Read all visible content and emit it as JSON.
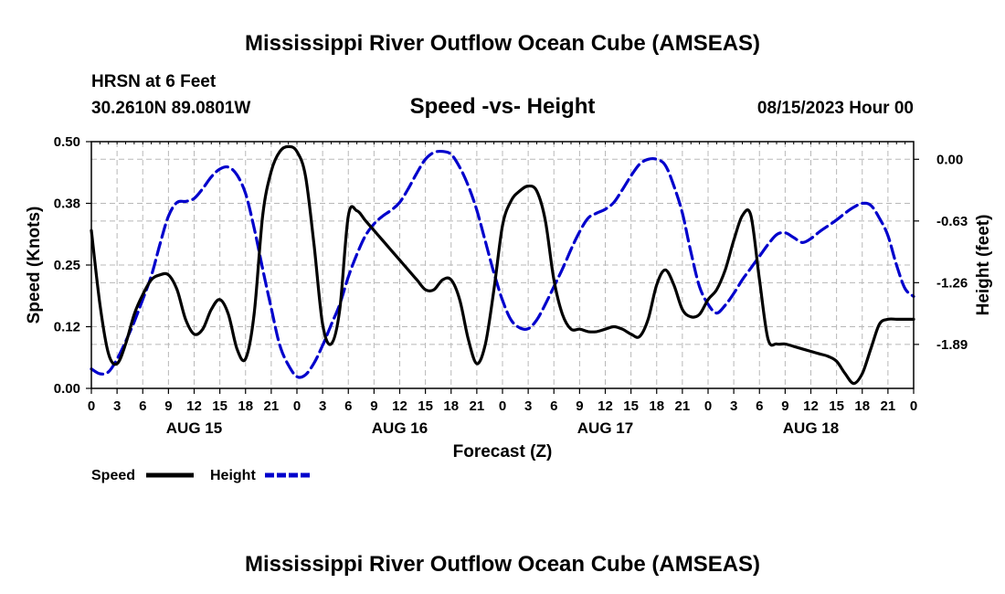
{
  "header": {
    "title": "Mississippi River Outflow Ocean Cube (AMSEAS)",
    "station": "HRSN at 6 Feet",
    "location": "30.2610N  89.0801W",
    "subtitle": "Speed -vs- Height",
    "timestamp": "08/15/2023 Hour 00"
  },
  "footer": {
    "title": "Mississippi River Outflow Ocean Cube (AMSEAS)"
  },
  "legend": [
    {
      "label": "Speed",
      "color": "#000000",
      "dash": "solid"
    },
    {
      "label": "Height",
      "color": "#0000cc",
      "dash": "dashed"
    }
  ],
  "chart_data": {
    "type": "line",
    "title": "Speed -vs- Height",
    "xlabel": "Forecast (Z)",
    "ylabel": "Speed (Knots)",
    "y2label": "Height (feet)",
    "xlim": [
      0,
      96
    ],
    "ylim": [
      0,
      0.5
    ],
    "y2lim": [
      -2.339,
      0.18
    ],
    "x_ticks": [
      0,
      3,
      6,
      9,
      12,
      15,
      18,
      21,
      24,
      27,
      30,
      33,
      36,
      39,
      42,
      45,
      48,
      51,
      54,
      57,
      60,
      63,
      66,
      69,
      72,
      75,
      78,
      81,
      84,
      87,
      90,
      93,
      96
    ],
    "x_tick_labels": [
      "0",
      "3",
      "6",
      "9",
      "12",
      "15",
      "18",
      "21",
      "0",
      "3",
      "6",
      "9",
      "12",
      "15",
      "18",
      "21",
      "0",
      "3",
      "6",
      "9",
      "12",
      "15",
      "18",
      "21",
      "0",
      "3",
      "6",
      "9",
      "12",
      "15",
      "18",
      "21",
      "0"
    ],
    "day_labels": [
      {
        "x": 12,
        "label": "AUG 15"
      },
      {
        "x": 36,
        "label": "AUG 16"
      },
      {
        "x": 60,
        "label": "AUG 17"
      },
      {
        "x": 84,
        "label": "AUG 18"
      }
    ],
    "y_ticks": [
      0.0,
      0.125,
      0.25,
      0.375,
      0.5
    ],
    "y_tick_labels": [
      "0.00",
      "0.12",
      "0.25",
      "0.38",
      "0.50"
    ],
    "y2_ticks": [
      0.0,
      -0.63,
      -1.26,
      -1.89
    ],
    "y2_tick_labels": [
      "0.00",
      "-0.63",
      "-1.26",
      "-1.89"
    ],
    "series": [
      {
        "name": "Speed",
        "axis": "left",
        "color": "#000000",
        "x": [
          0,
          1,
          2,
          3,
          4,
          5,
          6,
          7,
          8,
          9,
          10,
          11,
          12,
          13,
          14,
          15,
          16,
          17,
          18,
          19,
          20,
          21,
          22,
          23,
          24,
          25,
          26,
          27,
          28,
          29,
          30,
          31,
          32,
          33,
          34,
          35,
          36,
          37,
          38,
          39,
          40,
          41,
          42,
          43,
          44,
          45,
          46,
          47,
          48,
          49,
          50,
          51,
          52,
          53,
          54,
          55,
          56,
          57,
          58,
          59,
          60,
          61,
          62,
          63,
          64,
          65,
          66,
          67,
          68,
          69,
          70,
          71,
          72,
          73,
          74,
          75,
          76,
          77,
          78,
          79,
          80,
          81,
          82,
          83,
          84,
          85,
          86,
          87,
          88,
          89,
          90,
          91,
          92,
          93,
          94,
          95,
          96
        ],
        "values": [
          0.32,
          0.17,
          0.07,
          0.05,
          0.09,
          0.15,
          0.19,
          0.22,
          0.23,
          0.23,
          0.2,
          0.14,
          0.11,
          0.12,
          0.16,
          0.18,
          0.15,
          0.08,
          0.06,
          0.15,
          0.35,
          0.44,
          0.48,
          0.49,
          0.48,
          0.43,
          0.29,
          0.13,
          0.09,
          0.16,
          0.35,
          0.36,
          0.34,
          0.32,
          0.3,
          0.28,
          0.26,
          0.24,
          0.22,
          0.2,
          0.2,
          0.22,
          0.22,
          0.18,
          0.1,
          0.05,
          0.09,
          0.2,
          0.33,
          0.38,
          0.4,
          0.41,
          0.4,
          0.34,
          0.22,
          0.15,
          0.12,
          0.12,
          0.115,
          0.115,
          0.12,
          0.125,
          0.12,
          0.11,
          0.105,
          0.14,
          0.21,
          0.24,
          0.21,
          0.16,
          0.145,
          0.15,
          0.18,
          0.2,
          0.24,
          0.3,
          0.35,
          0.35,
          0.22,
          0.1,
          0.09,
          0.09,
          0.085,
          0.08,
          0.075,
          0.07,
          0.065,
          0.055,
          0.03,
          0.01,
          0.03,
          0.08,
          0.13,
          0.14,
          0.14,
          0.14,
          0.14
        ]
      },
      {
        "name": "Height",
        "axis": "right",
        "color": "#0000cc",
        "x": [
          0,
          1,
          2,
          3,
          4,
          5,
          6,
          7,
          8,
          9,
          10,
          11,
          12,
          13,
          14,
          15,
          16,
          17,
          18,
          19,
          20,
          21,
          22,
          23,
          24,
          25,
          26,
          27,
          28,
          29,
          30,
          31,
          32,
          33,
          34,
          35,
          36,
          37,
          38,
          39,
          40,
          41,
          42,
          43,
          44,
          45,
          46,
          47,
          48,
          49,
          50,
          51,
          52,
          53,
          54,
          55,
          56,
          57,
          58,
          59,
          60,
          61,
          62,
          63,
          64,
          65,
          66,
          67,
          68,
          69,
          70,
          71,
          72,
          73,
          74,
          75,
          76,
          77,
          78,
          79,
          80,
          81,
          82,
          83,
          84,
          85,
          86,
          87,
          88,
          89,
          90,
          91,
          92,
          93,
          94,
          95,
          96
        ],
        "values": [
          -2.14,
          -2.19,
          -2.17,
          -2.04,
          -1.86,
          -1.66,
          -1.43,
          -1.19,
          -0.87,
          -0.58,
          -0.44,
          -0.43,
          -0.4,
          -0.3,
          -0.18,
          -0.1,
          -0.08,
          -0.16,
          -0.35,
          -0.7,
          -1.12,
          -1.52,
          -1.9,
          -2.1,
          -2.22,
          -2.2,
          -2.08,
          -1.9,
          -1.69,
          -1.48,
          -1.2,
          -0.97,
          -0.78,
          -0.66,
          -0.58,
          -0.52,
          -0.44,
          -0.3,
          -0.14,
          0.0,
          0.07,
          0.08,
          0.05,
          -0.08,
          -0.27,
          -0.52,
          -0.84,
          -1.16,
          -1.44,
          -1.64,
          -1.72,
          -1.73,
          -1.64,
          -1.48,
          -1.3,
          -1.12,
          -0.92,
          -0.74,
          -0.6,
          -0.55,
          -0.51,
          -0.44,
          -0.31,
          -0.17,
          -0.05,
          0.0,
          0.0,
          -0.06,
          -0.27,
          -0.55,
          -0.95,
          -1.3,
          -1.48,
          -1.57,
          -1.49,
          -1.37,
          -1.23,
          -1.11,
          -0.99,
          -0.87,
          -0.77,
          -0.75,
          -0.8,
          -0.85,
          -0.81,
          -0.74,
          -0.68,
          -0.62,
          -0.55,
          -0.49,
          -0.45,
          -0.47,
          -0.6,
          -0.78,
          -1.08,
          -1.32,
          -1.4
        ]
      }
    ]
  }
}
